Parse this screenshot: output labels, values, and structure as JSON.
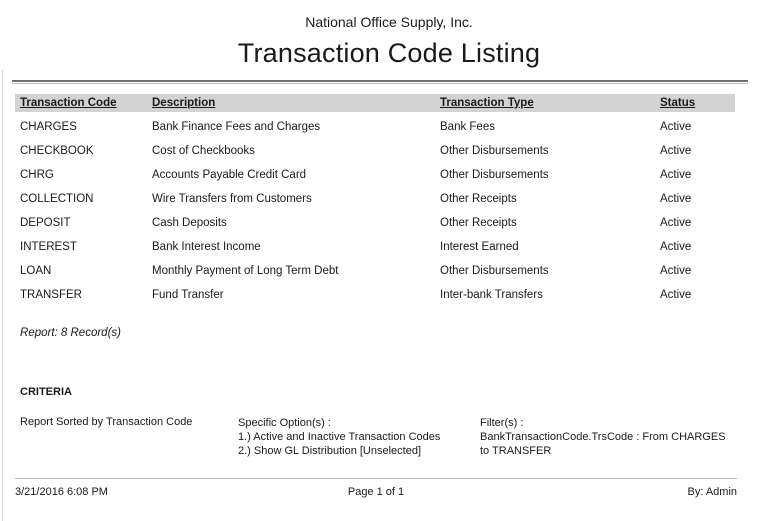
{
  "page": {
    "company": "National Office Supply, Inc.",
    "title": "Transaction Code Listing"
  },
  "table": {
    "headers": [
      "Transaction Code",
      "Description",
      "Transaction Type",
      "Status"
    ],
    "rows": [
      [
        "CHARGES",
        "Bank Finance Fees and Charges",
        "Bank Fees",
        "Active"
      ],
      [
        "CHECKBOOK",
        "Cost of Checkbooks",
        "Other Disbursements",
        "Active"
      ],
      [
        "CHRG",
        "Accounts Payable Credit Card",
        "Other Disbursements",
        "Active"
      ],
      [
        "COLLECTION",
        "Wire Transfers from Customers",
        "Other Receipts",
        "Active"
      ],
      [
        "DEPOSIT",
        "Cash Deposits",
        "Other Receipts",
        "Active"
      ],
      [
        "INTEREST",
        "Bank Interest Income",
        "Interest Earned",
        "Active"
      ],
      [
        "LOAN",
        "Monthly Payment of Long Term Debt",
        "Other Disbursements",
        "Active"
      ],
      [
        "TRANSFER",
        "Fund Transfer",
        "Inter-bank Transfers",
        "Active"
      ]
    ],
    "summary": "Report: 8 Record(s)"
  },
  "criteria": {
    "heading": "CRITERIA",
    "sort": "Report Sorted by Transaction Code",
    "options_label": "Specific Option(s) :",
    "options": [
      "1.) Active and Inactive Transaction Codes",
      "2.) Show GL Distribution [Unselected]"
    ],
    "filters_label": "Filter(s) :",
    "filters": [
      "BankTransactionCode.TrsCode :  From CHARGES",
      "to TRANSFER"
    ]
  },
  "footer": {
    "datetime": "3/21/2016 6:08 PM",
    "page_label": "Page 1 of 1",
    "by": "By: Admin"
  },
  "colors": {
    "header_bar": "#d3d3d3",
    "rule_dark": "#6f6f6f",
    "rule_light": "#bdbdbd",
    "text": "#1a1a1a"
  }
}
